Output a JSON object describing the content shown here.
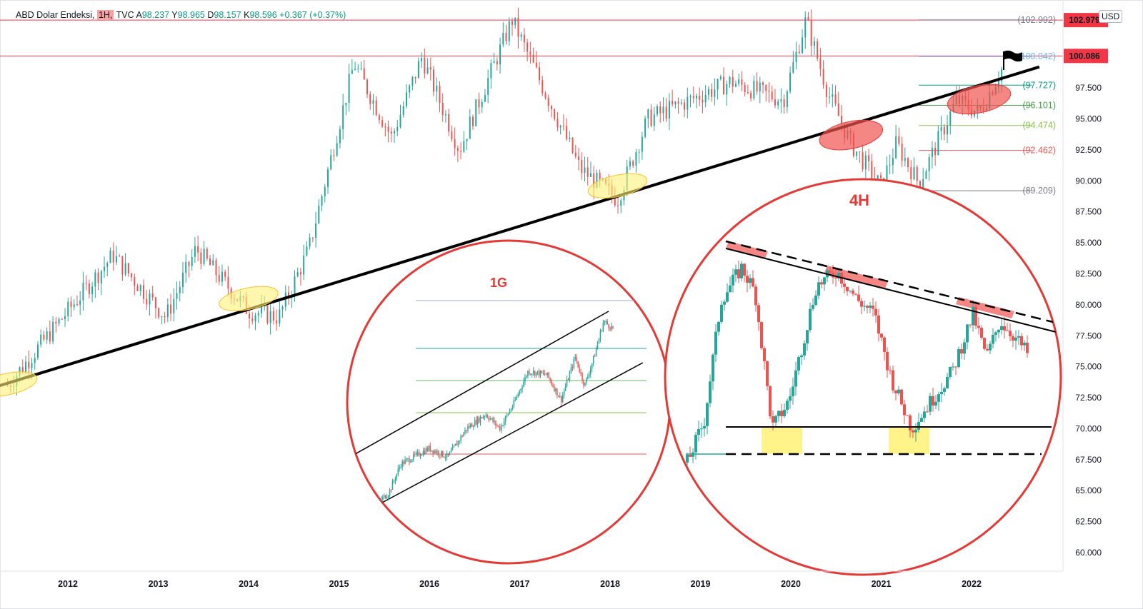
{
  "header": {
    "symbol_name": "ABD Dolar Endeksi,",
    "timeframe": "1H,",
    "source": "TVC",
    "open_label": "A",
    "open_value": "98.237",
    "high_label": "Y",
    "high_value": "98.965",
    "low_label": "D",
    "low_value": "98.157",
    "close_label": "K",
    "close_value": "98.596",
    "change": "+0.367 (+0.37%)"
  },
  "currency_button": "USD",
  "colors": {
    "up": "#26a69a",
    "down": "#ef5350",
    "resistance": "#f23645",
    "circle": "#e53935",
    "highlight_yellow": "#fff176",
    "highlight_red": "#ef5350"
  },
  "chart_data": {
    "type": "candlestick",
    "instrument": "ABD Dolar Endeksi",
    "x_ticks": [
      "2012",
      "2013",
      "2014",
      "2015",
      "2016",
      "2017",
      "2018",
      "2019",
      "2020",
      "2021",
      "2022"
    ],
    "y_ticks": [
      "60.000",
      "62.500",
      "65.000",
      "67.500",
      "70.000",
      "72.500",
      "75.000",
      "77.500",
      "80.000",
      "82.500",
      "85.000",
      "87.500",
      "90.000",
      "92.500",
      "95.000",
      "97.500"
    ],
    "y_range": [
      58.5,
      104.6
    ],
    "price_markers": [
      {
        "label": "102.979",
        "value": 102.979
      },
      {
        "label": "100.086",
        "value": 100.086
      }
    ],
    "fib_levels": [
      {
        "label": "(102.992)",
        "value": 102.992,
        "color": "#787b86"
      },
      {
        "label": "(100.042)",
        "value": 100.042,
        "color": "#64b5f6"
      },
      {
        "label": "(97.727)",
        "value": 97.727,
        "color": "#089981"
      },
      {
        "label": "(96.101)",
        "value": 96.101,
        "color": "#43a047"
      },
      {
        "label": "(94.474)",
        "value": 94.474,
        "color": "#8bc34a"
      },
      {
        "label": "(92.462)",
        "value": 92.462,
        "color": "#ef5350"
      },
      {
        "label": "(89.209)",
        "value": 89.209,
        "color": "#787b86"
      }
    ],
    "resistance_lines": [
      102.979,
      100.086
    ],
    "trendline": {
      "from": {
        "date": "2011-03",
        "price": 73.3
      },
      "to": {
        "date": "2022-10",
        "price": 99.2
      }
    },
    "key_prices": [
      {
        "date": "2011-05",
        "price": 73.5
      },
      {
        "date": "2011-09",
        "price": 76.5
      },
      {
        "date": "2012-07",
        "price": 84.0
      },
      {
        "date": "2013-02",
        "price": 79.0
      },
      {
        "date": "2013-06",
        "price": 84.5
      },
      {
        "date": "2014-01",
        "price": 79.5
      },
      {
        "date": "2014-05",
        "price": 79.0
      },
      {
        "date": "2014-09",
        "price": 84.5
      },
      {
        "date": "2015-03",
        "price": 99.5
      },
      {
        "date": "2015-08",
        "price": 93.5
      },
      {
        "date": "2015-12",
        "price": 100.0
      },
      {
        "date": "2016-05",
        "price": 92.5
      },
      {
        "date": "2016-12",
        "price": 103.0
      },
      {
        "date": "2017-09",
        "price": 91.0
      },
      {
        "date": "2018-02",
        "price": 88.5
      },
      {
        "date": "2018-06",
        "price": 95.0
      },
      {
        "date": "2019-05",
        "price": 98.0
      },
      {
        "date": "2019-12",
        "price": 96.5
      },
      {
        "date": "2020-03",
        "price": 103.0
      },
      {
        "date": "2020-06",
        "price": 97.0
      },
      {
        "date": "2020-09",
        "price": 93.0
      },
      {
        "date": "2021-01",
        "price": 89.5
      },
      {
        "date": "2021-03",
        "price": 93.0
      },
      {
        "date": "2021-06",
        "price": 89.8
      },
      {
        "date": "2021-11",
        "price": 96.5
      },
      {
        "date": "2022-02",
        "price": 95.5
      },
      {
        "date": "2022-05",
        "price": 99.0
      }
    ],
    "insets": [
      {
        "label": "1G",
        "pattern": "ascending channel"
      },
      {
        "label": "4H",
        "pattern": "descending triangle"
      }
    ]
  }
}
